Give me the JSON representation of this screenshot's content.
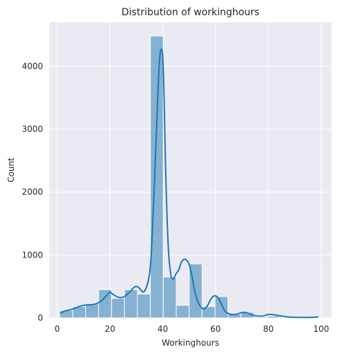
{
  "chart_data": {
    "type": "histogram",
    "title": "Distribution of workinghours",
    "xlabel": "Workinghours",
    "ylabel": "Count",
    "xlim": [
      -3,
      104
    ],
    "ylim": [
      0,
      4700
    ],
    "xticks": [
      0,
      20,
      40,
      60,
      80,
      100
    ],
    "yticks": [
      0,
      1000,
      2000,
      3000,
      4000
    ],
    "grid": true,
    "colors": {
      "background": "#eaeaf2",
      "grid": "#ffffff",
      "bar_fill": "#1f77b4",
      "bar_opacity": 0.5,
      "bar_edge": "#ffffff",
      "kde_line": "#1f77b4"
    },
    "bins": [
      {
        "x0": 1.0,
        "x1": 5.9,
        "count": 120
      },
      {
        "x0": 5.9,
        "x1": 10.8,
        "count": 180
      },
      {
        "x0": 10.8,
        "x1": 15.7,
        "count": 230
      },
      {
        "x0": 15.7,
        "x1": 20.6,
        "count": 450
      },
      {
        "x0": 20.6,
        "x1": 25.5,
        "count": 310
      },
      {
        "x0": 25.5,
        "x1": 30.4,
        "count": 450
      },
      {
        "x0": 30.4,
        "x1": 35.3,
        "count": 380
      },
      {
        "x0": 35.3,
        "x1": 40.2,
        "count": 4480
      },
      {
        "x0": 40.2,
        "x1": 45.1,
        "count": 650
      },
      {
        "x0": 45.1,
        "x1": 50.0,
        "count": 200
      },
      {
        "x0": 50.0,
        "x1": 54.9,
        "count": 860
      },
      {
        "x0": 54.9,
        "x1": 59.8,
        "count": 180
      },
      {
        "x0": 59.8,
        "x1": 64.7,
        "count": 340
      },
      {
        "x0": 64.7,
        "x1": 69.6,
        "count": 60
      },
      {
        "x0": 69.6,
        "x1": 74.5,
        "count": 90
      },
      {
        "x0": 74.5,
        "x1": 79.4,
        "count": 15
      },
      {
        "x0": 79.4,
        "x1": 84.3,
        "count": 30
      },
      {
        "x0": 84.3,
        "x1": 89.2,
        "count": 10
      },
      {
        "x0": 89.2,
        "x1": 94.1,
        "count": 5
      },
      {
        "x0": 94.1,
        "x1": 99.0,
        "count": 10
      }
    ],
    "kde": {
      "x": [
        1,
        3,
        5,
        7,
        9,
        11,
        13,
        15,
        17,
        19,
        20,
        21,
        23,
        25,
        27,
        29,
        30,
        31,
        33,
        35,
        36,
        37,
        38,
        38.5,
        39,
        39.5,
        40,
        40.5,
        41,
        42,
        43,
        44,
        45,
        46,
        47,
        48,
        49,
        50,
        51,
        52,
        53,
        54,
        55,
        56,
        57,
        58,
        59,
        60,
        61,
        62,
        63,
        64,
        66,
        68,
        70,
        72,
        74,
        76,
        78,
        80,
        82,
        85,
        88,
        92,
        96,
        99
      ],
      "y": [
        70,
        110,
        130,
        160,
        190,
        205,
        210,
        230,
        280,
        370,
        410,
        380,
        330,
        330,
        390,
        480,
        500,
        480,
        420,
        700,
        1300,
        2300,
        3400,
        3900,
        4200,
        4270,
        4150,
        3500,
        2500,
        1200,
        700,
        620,
        700,
        760,
        880,
        930,
        920,
        850,
        680,
        450,
        290,
        200,
        150,
        150,
        200,
        280,
        340,
        350,
        320,
        240,
        150,
        90,
        55,
        60,
        85,
        80,
        45,
        30,
        30,
        55,
        50,
        30,
        12,
        8,
        8,
        15
      ]
    }
  }
}
